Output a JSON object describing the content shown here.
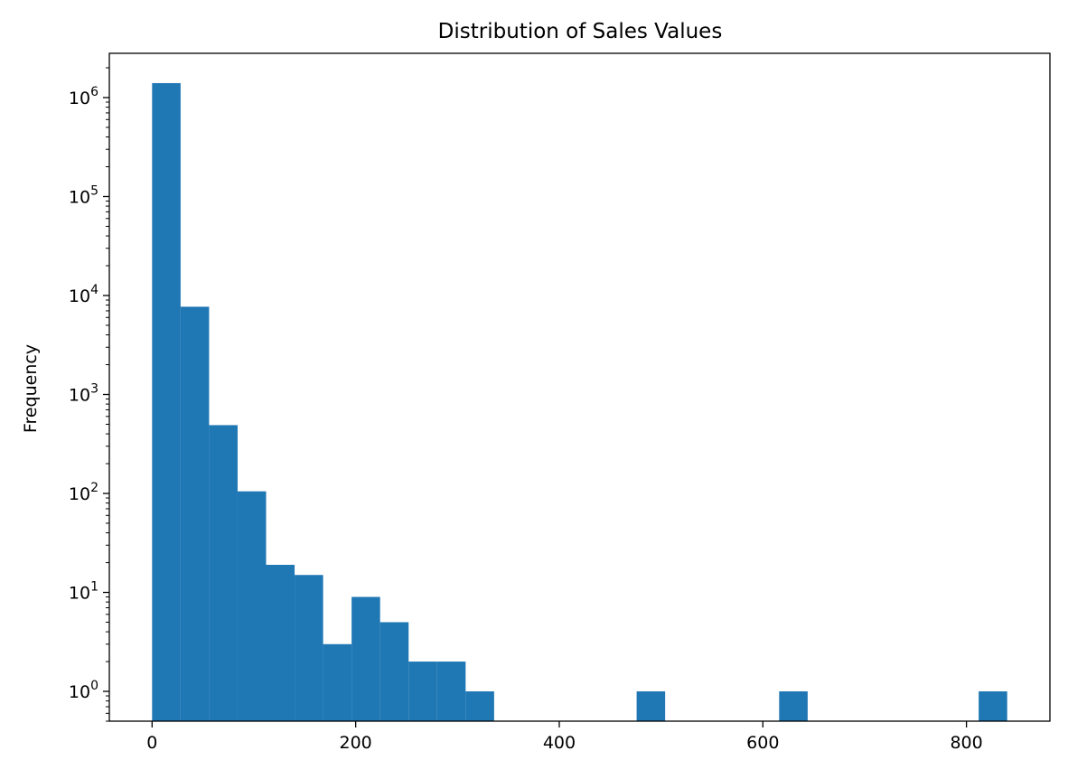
{
  "chart_data": {
    "type": "bar",
    "title": "Distribution of Sales Values",
    "xlabel": "",
    "ylabel": "Frequency",
    "yscale": "log",
    "grid": false,
    "legend": "none",
    "bar_color": "#1f77b4",
    "xlim": [
      -42,
      882
    ],
    "ylim": [
      0.5,
      2800000
    ],
    "bins": [
      {
        "start": 0,
        "end": 28,
        "count": 1400000
      },
      {
        "start": 28,
        "end": 56,
        "count": 7700
      },
      {
        "start": 56,
        "end": 84,
        "count": 490
      },
      {
        "start": 84,
        "end": 112,
        "count": 105
      },
      {
        "start": 112,
        "end": 140,
        "count": 19
      },
      {
        "start": 140,
        "end": 168,
        "count": 15
      },
      {
        "start": 168,
        "end": 196,
        "count": 3
      },
      {
        "start": 196,
        "end": 224,
        "count": 9
      },
      {
        "start": 224,
        "end": 252,
        "count": 5
      },
      {
        "start": 252,
        "end": 280,
        "count": 2
      },
      {
        "start": 280,
        "end": 308,
        "count": 2
      },
      {
        "start": 308,
        "end": 336,
        "count": 1
      },
      {
        "start": 336,
        "end": 364,
        "count": 0
      },
      {
        "start": 364,
        "end": 392,
        "count": 0
      },
      {
        "start": 392,
        "end": 420,
        "count": 0
      },
      {
        "start": 420,
        "end": 448,
        "count": 0
      },
      {
        "start": 448,
        "end": 476,
        "count": 0
      },
      {
        "start": 476,
        "end": 504,
        "count": 1
      },
      {
        "start": 504,
        "end": 532,
        "count": 0
      },
      {
        "start": 532,
        "end": 560,
        "count": 0
      },
      {
        "start": 560,
        "end": 588,
        "count": 0
      },
      {
        "start": 588,
        "end": 616,
        "count": 0
      },
      {
        "start": 616,
        "end": 644,
        "count": 1
      },
      {
        "start": 644,
        "end": 672,
        "count": 0
      },
      {
        "start": 672,
        "end": 700,
        "count": 0
      },
      {
        "start": 700,
        "end": 728,
        "count": 0
      },
      {
        "start": 728,
        "end": 756,
        "count": 0
      },
      {
        "start": 756,
        "end": 784,
        "count": 0
      },
      {
        "start": 784,
        "end": 812,
        "count": 0
      },
      {
        "start": 812,
        "end": 840,
        "count": 1
      }
    ],
    "x_ticks": [
      {
        "value": 0,
        "label": "0"
      },
      {
        "value": 200,
        "label": "200"
      },
      {
        "value": 400,
        "label": "400"
      },
      {
        "value": 600,
        "label": "600"
      },
      {
        "value": 800,
        "label": "800"
      }
    ],
    "y_ticks": [
      {
        "value": 1,
        "base": "10",
        "exp": "0"
      },
      {
        "value": 10,
        "base": "10",
        "exp": "1"
      },
      {
        "value": 100,
        "base": "10",
        "exp": "2"
      },
      {
        "value": 1000,
        "base": "10",
        "exp": "3"
      },
      {
        "value": 10000,
        "base": "10",
        "exp": "4"
      },
      {
        "value": 100000,
        "base": "10",
        "exp": "5"
      },
      {
        "value": 1000000,
        "base": "10",
        "exp": "6"
      }
    ]
  }
}
